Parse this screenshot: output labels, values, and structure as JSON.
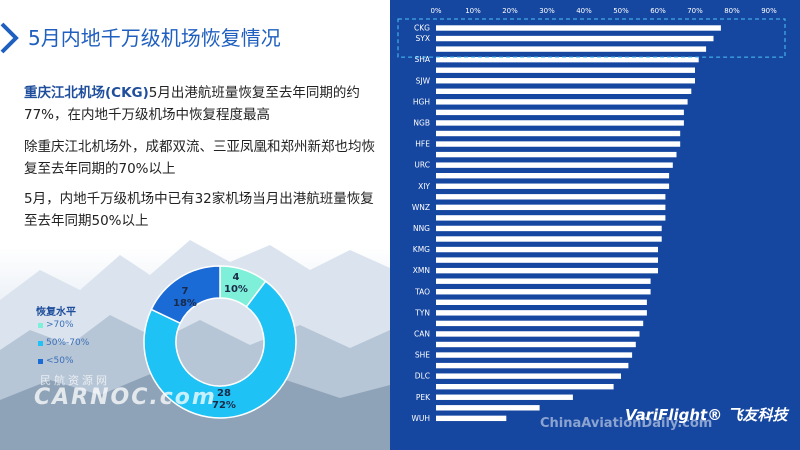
{
  "title": "5月内地千万级机场恢复情况",
  "paragraphs": {
    "p1_highlight": "重庆江北机场(CKG)",
    "p1_rest": "5月出港航班量恢复至去年同期的约77%，在内地千万级机场中恢复程度最高",
    "p2": "除重庆江北机场外，成都双流、三亚凤凰和郑州新郑也均恢复至去年同期的70%以上",
    "p3": "5月，内地千万级机场中已有32家机场当月出港航班量恢复至去年同期50%以上"
  },
  "legend": {
    "title": "恢复水平",
    "items": [
      {
        "label": ">70%",
        "color": "#7ef0d9"
      },
      {
        "label": "50%-70%",
        "color": "#1ec2f4"
      },
      {
        "label": "<50%",
        "color": "#1a6bd6"
      }
    ]
  },
  "donut_labels": {
    "a_count": "4",
    "a_pct": "10%",
    "b_count": "28",
    "b_pct": "72%",
    "c_count": "7",
    "c_pct": "18%"
  },
  "watermarks": {
    "left_cn": "民航资源网",
    "left_en": "CARNOC.com",
    "right": "ChinaAviationDaily.com",
    "brand": "VariFlight® 飞友科技"
  },
  "colors": {
    "panel": "#1546a0",
    "bar": "#ffffff",
    "title": "#1f5fbf"
  },
  "chart_data": [
    {
      "type": "bar",
      "orientation": "horizontal",
      "title": "",
      "xlabel": "",
      "ylabel": "",
      "xlim": [
        0,
        0.9
      ],
      "x_ticks": [
        "0%",
        "10%",
        "20%",
        "30%",
        "40%",
        "50%",
        "60%",
        "70%",
        "80%",
        "90%"
      ],
      "categories": [
        "CKG",
        "SYX",
        "",
        "SHA",
        "",
        "SJW",
        "",
        "HGH",
        "",
        "NGB",
        "",
        "HFE",
        "",
        "URC",
        "",
        "XIY",
        "",
        "WNZ",
        "",
        "NNG",
        "",
        "KMG",
        "",
        "XMN",
        "",
        "TAO",
        "",
        "TYN",
        "",
        "CAN",
        "",
        "SHE",
        "",
        "DLC",
        "",
        "PEK",
        "",
        "WUH"
      ],
      "values": [
        0.77,
        0.75,
        0.73,
        0.71,
        0.7,
        0.7,
        0.69,
        0.68,
        0.67,
        0.67,
        0.66,
        0.66,
        0.65,
        0.64,
        0.63,
        0.63,
        0.62,
        0.62,
        0.62,
        0.61,
        0.61,
        0.6,
        0.6,
        0.6,
        0.58,
        0.58,
        0.57,
        0.57,
        0.56,
        0.55,
        0.54,
        0.53,
        0.52,
        0.5,
        0.48,
        0.37,
        0.28,
        0.19
      ],
      "highlight_box": [
        "CKG",
        "SYX"
      ]
    },
    {
      "type": "pie",
      "variant": "donut",
      "legend_title": "恢复水平",
      "categories": [
        ">70%",
        "50%-70%",
        "<50%"
      ],
      "values": [
        4,
        28,
        7
      ],
      "percent": [
        10,
        72,
        18
      ]
    }
  ]
}
